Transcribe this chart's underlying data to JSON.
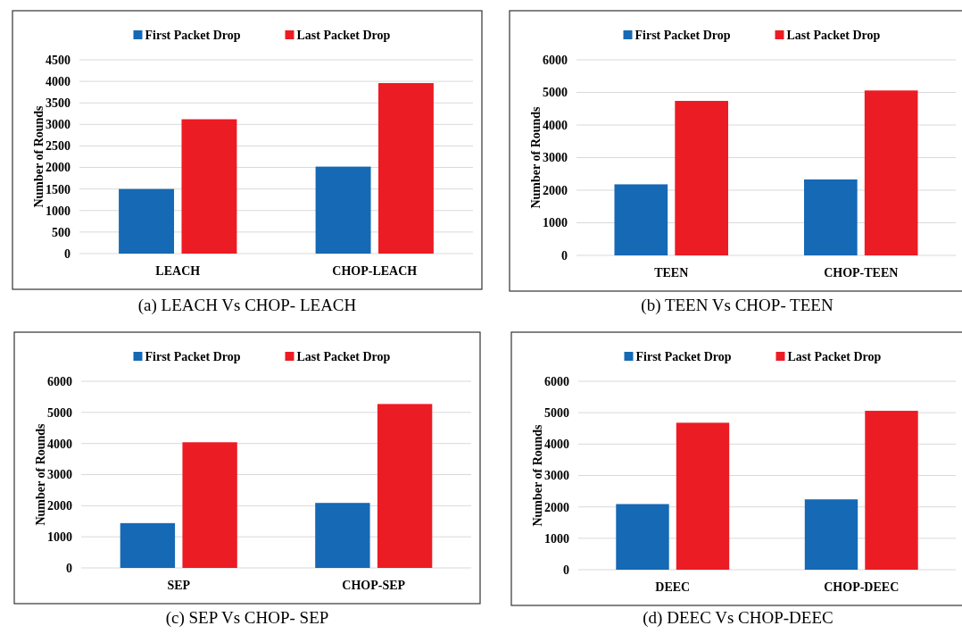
{
  "chart_data": [
    {
      "type": "bar",
      "title": "(a) LEACH Vs CHOP- LEACH",
      "ylabel": "Number of Rounds",
      "categories": [
        "LEACH",
        "CHOP-LEACH"
      ],
      "series": [
        {
          "name": "First Packet Drop",
          "color": "#1569b5",
          "values": [
            1500,
            2020
          ]
        },
        {
          "name": "Last Packet Drop",
          "color": "#ec1c24",
          "values": [
            3120,
            3960
          ]
        }
      ],
      "ylim": [
        0,
        4500
      ],
      "yticks": [
        0,
        500,
        1000,
        1500,
        2000,
        2500,
        3000,
        3500,
        4000,
        4500
      ],
      "grid": "y",
      "legend": "top"
    },
    {
      "type": "bar",
      "title": "(b) TEEN Vs CHOP- TEEN",
      "ylabel": "Number of Rounds",
      "categories": [
        "TEEN",
        "CHOP-TEEN"
      ],
      "series": [
        {
          "name": "First Packet Drop",
          "color": "#1569b5",
          "values": [
            2180,
            2330
          ]
        },
        {
          "name": "Last Packet Drop",
          "color": "#ec1c24",
          "values": [
            4740,
            5060
          ]
        }
      ],
      "ylim": [
        0,
        6000
      ],
      "yticks": [
        0,
        1000,
        2000,
        3000,
        4000,
        5000,
        6000
      ],
      "grid": "y",
      "legend": "top"
    },
    {
      "type": "bar",
      "title": "(c) SEP Vs CHOP- SEP",
      "ylabel": "Number of Rounds",
      "categories": [
        "SEP",
        "CHOP-SEP"
      ],
      "series": [
        {
          "name": "First Packet Drop",
          "color": "#1569b5",
          "values": [
            1440,
            2090
          ]
        },
        {
          "name": "Last Packet Drop",
          "color": "#ec1c24",
          "values": [
            4040,
            5270
          ]
        }
      ],
      "ylim": [
        0,
        6000
      ],
      "yticks": [
        0,
        1000,
        2000,
        3000,
        4000,
        5000,
        6000
      ],
      "grid": "y",
      "legend": "top"
    },
    {
      "type": "bar",
      "title": "(d) DEEC Vs CHOP-DEEC",
      "ylabel": "Number of Rounds",
      "categories": [
        "DEEC",
        "CHOP-DEEC"
      ],
      "series": [
        {
          "name": "First Packet Drop",
          "color": "#1569b5",
          "values": [
            2090,
            2240
          ]
        },
        {
          "name": "Last Packet Drop",
          "color": "#ec1c24",
          "values": [
            4680,
            5060
          ]
        }
      ],
      "ylim": [
        0,
        6000
      ],
      "yticks": [
        0,
        1000,
        2000,
        3000,
        4000,
        5000,
        6000
      ],
      "grid": "y",
      "legend": "top"
    }
  ]
}
